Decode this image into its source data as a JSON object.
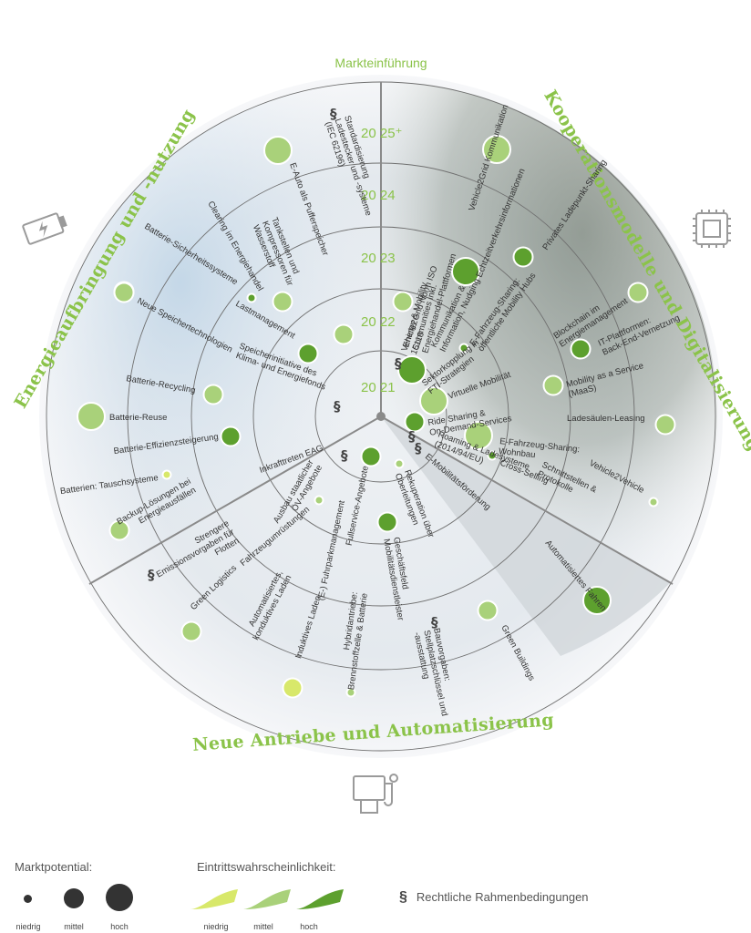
{
  "header": {
    "top_label": "Markteinführung"
  },
  "sections": [
    {
      "label": "Energieaufbringung und -nutzung"
    },
    {
      "label": "Kooperationsmodelle und Digitalisierung"
    },
    {
      "label": "Neue Antriebe und Automatisierung"
    }
  ],
  "years": [
    "20 21",
    "20 22",
    "20 23",
    "20 24",
    "20 25⁺"
  ],
  "items": [
    {
      "text": "Standardisierung Ladestecker und -systeme (IEC 62196)",
      "para": true
    },
    {
      "text": "E-Auto als Pufferspeicher",
      "size": "hoch",
      "prob": "mittel"
    },
    {
      "text": "Tankstellen und Kompressoren für Wasserstoff",
      "size": "mittel",
      "prob": "mittel"
    },
    {
      "text": "Clearing im Energiehandel",
      "size": "niedrig",
      "prob": "hoch"
    },
    {
      "text": "Batterie-Sicherheitssysteme",
      "size": "mittel",
      "prob": "hoch"
    },
    {
      "text": "Lastmanagement",
      "size": "mittel",
      "prob": "hoch"
    },
    {
      "text": "Neue Speichertechnologien",
      "size": "mittel",
      "prob": "mittel"
    },
    {
      "text": "Speicherinitiative des Klima- und Energiefonds",
      "para": true
    },
    {
      "text": "Batterie-Recycling",
      "size": "mittel",
      "prob": "mittel"
    },
    {
      "text": "Batterie-Reuse",
      "size": "hoch",
      "prob": "mittel"
    },
    {
      "text": "Batterie-Effizienzsteigerung",
      "size": "mittel",
      "prob": "hoch"
    },
    {
      "text": "Inkrafttreten EAG",
      "para": true
    },
    {
      "text": "Batterien: Tauschsysteme",
      "size": "niedrig",
      "prob": "niedrig"
    },
    {
      "text": "Backup-Lösungen bei Energieausfällen",
      "size": "mittel",
      "prob": "mittel"
    },
    {
      "text": "Energy & Mobility Communities inkl. Energiehandel-Plattformen"
    },
    {
      "text": "Vehicle2Grid Kommunikation",
      "size": "hoch",
      "prob": "mittel"
    },
    {
      "text": "Echtzeitverkehrsinformationen",
      "size": "hoch",
      "prob": "hoch"
    },
    {
      "text": "Privates Ladepunkt-Sharing",
      "size": "mittel",
      "prob": "hoch"
    },
    {
      "text": "Vehicle2Grid Norm ISO 15118",
      "size": "mittel",
      "prob": "mittel"
    },
    {
      "text": "Kommunikation & Information, Nudging",
      "size": "niedrig",
      "prob": "hoch"
    },
    {
      "text": "E-Fahrzeug-Sharing: öffentliche Mobility Hubs",
      "size": "mittel",
      "prob": "mittel"
    },
    {
      "text": "Blockchain im Energiemanagement",
      "size": "mittel",
      "prob": "mittel"
    },
    {
      "text": "IT-Plattformen: Back-End-Vernetzung",
      "size": "mittel",
      "prob": "hoch"
    },
    {
      "text": "Sektorkopplung in FTI-Strategien",
      "size": "hoch",
      "prob": "hoch",
      "para": true
    },
    {
      "text": "Mobility as a Service (MaaS)",
      "size": "mittel",
      "prob": "mittel"
    },
    {
      "text": "Virtuelle Mobilität",
      "size": "hoch",
      "prob": "mittel"
    },
    {
      "text": "Ride Sharing & On-Demand-Services",
      "size": "mittel",
      "prob": "hoch"
    },
    {
      "text": "Ladesäulen-Leasing",
      "size": "mittel",
      "prob": "mittel"
    },
    {
      "text": "E-Fahrzeug-Sharing: Wohnbau",
      "size": "hoch",
      "prob": "mittel"
    },
    {
      "text": "Roaming & Ladesysteme (2014/94/EU)",
      "para": true
    },
    {
      "text": "Cross-Selling",
      "size": "niedrig",
      "prob": "hoch"
    },
    {
      "text": "Schnittstellen & Protokolle"
    },
    {
      "text": "Vehicle2Vehicle",
      "size": "niedrig",
      "prob": "mittel"
    },
    {
      "text": "E-Mobilitätsförderung",
      "para": true
    },
    {
      "text": "Fullservice-Angebote",
      "size": "mittel",
      "prob": "hoch"
    },
    {
      "text": "Ausbau staatlicher ÖV-Angebote",
      "size": "niedrig",
      "prob": "mittel"
    },
    {
      "text": "Rekuperation über Oberleitungen",
      "size": "niedrig",
      "prob": "mittel"
    },
    {
      "text": "Automatisiertes Fahren",
      "size": "hoch",
      "prob": "hoch"
    },
    {
      "text": "Strengere Emissionsvorgaben für Flotten",
      "para": true
    },
    {
      "text": "Fahrzeugumrüstungen"
    },
    {
      "text": "(E-) Fuhrparkmanagement"
    },
    {
      "text": "Geschäftsfeld Mobilitätsdienstleister",
      "size": "mittel",
      "prob": "hoch"
    },
    {
      "text": "Green Logistics",
      "size": "mittel",
      "prob": "mittel"
    },
    {
      "text": "Automatisiertes, konduktives Laden"
    },
    {
      "text": "Induktives Laden",
      "size": "mittel",
      "prob": "niedrig"
    },
    {
      "text": "Hybridantriebe: Brennstoffzelle & Batterie",
      "size": "niedrig",
      "prob": "mittel"
    },
    {
      "text": "Bauvorgaben: Stellplatzschlüssel und -ausstattung",
      "para": true
    },
    {
      "text": "Green Buildings",
      "size": "mittel",
      "prob": "mittel"
    }
  ],
  "legend": {
    "potential_title": "Marktpotential:",
    "potential_levels": [
      "niedrig",
      "mittel",
      "hoch"
    ],
    "probability_title": "Eintrittswahrscheinlichkeit:",
    "probability_levels": [
      "niedrig",
      "mittel",
      "hoch"
    ],
    "probability_colors": [
      "#d8e86a",
      "#a9d17a",
      "#5da02e"
    ],
    "legal_symbol": "§",
    "legal_label": "Rechtliche Rahmenbedingungen"
  },
  "colors": {
    "accent": "#8bc34a",
    "niedrig": "#d8e86a",
    "mittel": "#a9d17a",
    "hoch": "#5da02e"
  }
}
